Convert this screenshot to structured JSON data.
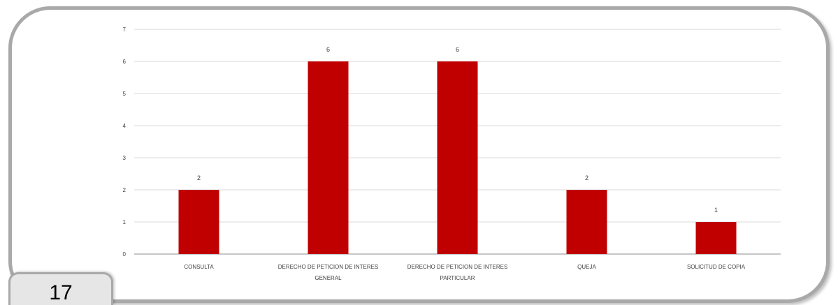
{
  "page": {
    "number": "17"
  },
  "colors": {
    "bar": "#c00000",
    "frame": "#a9a9a9",
    "grid": "#d9d9d9",
    "axis": "#8c8c8c",
    "tab": "#e6e6e6"
  },
  "chart_data": {
    "type": "bar",
    "title": "",
    "xlabel": "",
    "ylabel": "",
    "categories": [
      [
        "CONSULTA"
      ],
      [
        "DERECHO DE PETICION DE INTERES",
        "GENERAL"
      ],
      [
        "DERECHO DE PETICION DE INTERES",
        "PARTICULAR"
      ],
      [
        "QUEJA"
      ],
      [
        "SOLICITUD DE COPIA"
      ]
    ],
    "values": [
      2,
      6,
      6,
      2,
      1
    ],
    "ylim": [
      0,
      7
    ],
    "yticks": [
      0,
      1,
      2,
      3,
      4,
      5,
      6,
      7
    ],
    "grid": true,
    "data_labels": true,
    "legend": "none"
  }
}
